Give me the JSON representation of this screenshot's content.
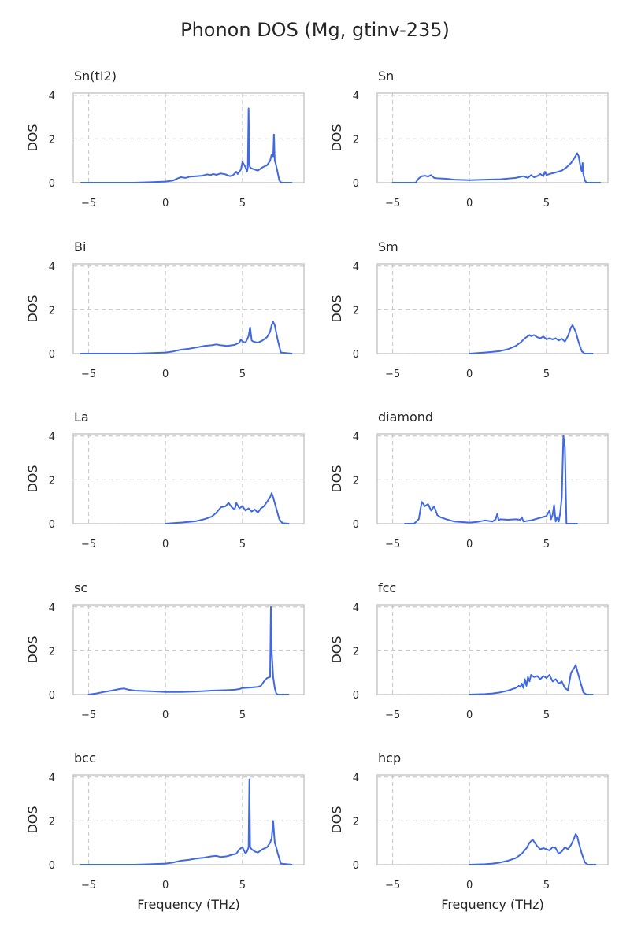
{
  "chart_data": {
    "type": "line",
    "title": "Phonon DOS (Mg, gtinv-235)",
    "xlabel": "Frequency (THz)",
    "ylabel": "DOS",
    "xlim": [
      -6,
      9
    ],
    "ylim": [
      0,
      4.1
    ],
    "xticks": [
      -5,
      0,
      5
    ],
    "xtick_labels": [
      "−5",
      "0",
      "5"
    ],
    "yticks": [
      0,
      2,
      4
    ],
    "ytick_labels": [
      "0",
      "2",
      "4"
    ],
    "grid": true,
    "line_color": "#4169e1",
    "panels": [
      {
        "name": "Sn(tI2)",
        "x": [
          -5.5,
          -2,
          -1,
          0,
          0.5,
          0.8,
          1,
          1.3,
          1.6,
          2,
          2.4,
          2.7,
          2.9,
          3.1,
          3.3,
          3.6,
          3.9,
          4.2,
          4.4,
          4.6,
          4.7,
          4.9,
          5.0,
          5.2,
          5.3,
          5.35,
          5.4,
          5.45,
          5.5,
          5.6,
          5.8,
          6.0,
          6.3,
          6.6,
          6.8,
          6.9,
          7.0,
          7.05,
          7.1,
          7.15,
          7.25,
          7.4,
          7.5,
          7.6,
          8.2
        ],
        "y": [
          0,
          0,
          0.02,
          0.05,
          0.1,
          0.2,
          0.25,
          0.22,
          0.28,
          0.3,
          0.32,
          0.38,
          0.35,
          0.4,
          0.36,
          0.42,
          0.38,
          0.3,
          0.35,
          0.5,
          0.4,
          0.6,
          0.95,
          0.7,
          0.5,
          0.7,
          3.4,
          0.8,
          0.7,
          0.65,
          0.6,
          0.55,
          0.7,
          0.8,
          1.0,
          1.3,
          1.2,
          2.2,
          1.0,
          0.9,
          0.6,
          0.1,
          0.02,
          0,
          0
        ]
      },
      {
        "name": "Sn",
        "x": [
          -5,
          -3.5,
          -3.3,
          -3.1,
          -2.9,
          -2.7,
          -2.5,
          -2.3,
          -2.1,
          -1.5,
          -1,
          0,
          1,
          2,
          3,
          3.5,
          3.8,
          4.0,
          4.2,
          4.4,
          4.6,
          4.8,
          4.9,
          5.0,
          5.2,
          5.5,
          6.0,
          6.3,
          6.6,
          6.8,
          7.0,
          7.1,
          7.2,
          7.3,
          7.35,
          7.4,
          7.5,
          7.6,
          8.5
        ],
        "y": [
          0,
          0,
          0.2,
          0.3,
          0.32,
          0.28,
          0.35,
          0.22,
          0.2,
          0.18,
          0.14,
          0.12,
          0.14,
          0.16,
          0.22,
          0.3,
          0.22,
          0.35,
          0.25,
          0.3,
          0.4,
          0.3,
          0.5,
          0.35,
          0.4,
          0.45,
          0.55,
          0.7,
          0.9,
          1.1,
          1.35,
          1.2,
          0.8,
          0.5,
          0.9,
          0.4,
          0.1,
          0,
          0
        ]
      },
      {
        "name": "Bi",
        "x": [
          -5.5,
          -2,
          -1,
          0,
          0.5,
          1,
          1.5,
          2,
          2.5,
          3,
          3.3,
          3.6,
          4,
          4.5,
          4.8,
          4.9,
          5.0,
          5.2,
          5.4,
          5.5,
          5.6,
          5.7,
          6.0,
          6.3,
          6.6,
          6.8,
          6.9,
          7.0,
          7.1,
          7.3,
          7.5,
          8.2
        ],
        "y": [
          0,
          0,
          0.02,
          0.05,
          0.1,
          0.18,
          0.22,
          0.28,
          0.35,
          0.38,
          0.42,
          0.38,
          0.35,
          0.4,
          0.5,
          0.65,
          0.55,
          0.5,
          0.8,
          1.2,
          0.6,
          0.55,
          0.5,
          0.6,
          0.75,
          1.0,
          1.3,
          1.45,
          1.3,
          0.6,
          0.05,
          0
        ]
      },
      {
        "name": "Sm",
        "x": [
          0,
          1,
          1.5,
          2,
          2.5,
          3,
          3.3,
          3.6,
          3.9,
          4.0,
          4.2,
          4.4,
          4.6,
          4.8,
          5.0,
          5.2,
          5.4,
          5.6,
          5.8,
          6.0,
          6.2,
          6.4,
          6.5,
          6.6,
          6.7,
          6.9,
          7.1,
          7.3,
          7.5,
          8.0
        ],
        "y": [
          0,
          0.05,
          0.08,
          0.12,
          0.2,
          0.35,
          0.5,
          0.7,
          0.85,
          0.8,
          0.85,
          0.75,
          0.7,
          0.78,
          0.65,
          0.7,
          0.65,
          0.7,
          0.6,
          0.68,
          0.55,
          0.8,
          1.0,
          1.2,
          1.3,
          1.0,
          0.5,
          0.1,
          0,
          0
        ]
      },
      {
        "name": "La",
        "x": [
          0,
          1,
          1.5,
          2,
          2.5,
          3,
          3.3,
          3.6,
          3.9,
          4.1,
          4.3,
          4.5,
          4.6,
          4.8,
          5.0,
          5.2,
          5.4,
          5.6,
          5.8,
          6.0,
          6.2,
          6.4,
          6.6,
          6.8,
          6.9,
          7.0,
          7.2,
          7.4,
          7.6,
          8.0
        ],
        "y": [
          0,
          0.05,
          0.08,
          0.12,
          0.2,
          0.32,
          0.5,
          0.75,
          0.8,
          0.95,
          0.75,
          0.65,
          0.95,
          0.7,
          0.8,
          0.6,
          0.7,
          0.55,
          0.65,
          0.5,
          0.7,
          0.8,
          1.0,
          1.2,
          1.4,
          1.2,
          0.7,
          0.2,
          0.02,
          0
        ]
      },
      {
        "name": "diamond",
        "x": [
          -4.2,
          -3.6,
          -3.3,
          -3.1,
          -2.9,
          -2.7,
          -2.5,
          -2.3,
          -2.1,
          -1.9,
          -1.5,
          -1,
          0,
          0.5,
          1,
          1.5,
          1.7,
          1.8,
          1.9,
          2,
          2.5,
          3,
          3.3,
          3.4,
          3.5,
          4,
          4.5,
          5.0,
          5.2,
          5.3,
          5.4,
          5.5,
          5.6,
          5.7,
          5.8,
          5.9,
          6.0,
          6.1,
          6.2,
          6.3,
          6.5,
          7.0
        ],
        "y": [
          0,
          0,
          0.2,
          1.0,
          0.8,
          0.9,
          0.6,
          0.8,
          0.4,
          0.3,
          0.2,
          0.1,
          0.05,
          0.08,
          0.15,
          0.1,
          0.2,
          0.45,
          0.15,
          0.2,
          0.18,
          0.2,
          0.18,
          0.3,
          0.1,
          0.15,
          0.25,
          0.35,
          0.6,
          0.2,
          0.4,
          0.85,
          0.1,
          0.3,
          0.1,
          0.5,
          1.2,
          4.0,
          3.5,
          0,
          0,
          0
        ]
      },
      {
        "name": "sc",
        "x": [
          -5,
          -4.5,
          -4,
          -3.5,
          -3,
          -2.7,
          -2.4,
          -2,
          -1,
          0,
          1,
          2,
          3,
          4,
          4.5,
          4.8,
          5.0,
          5.5,
          6.0,
          6.2,
          6.4,
          6.6,
          6.8,
          6.85,
          6.9,
          7.0,
          7.1,
          7.2,
          7.3,
          7.5,
          8.0
        ],
        "y": [
          0,
          0.05,
          0.12,
          0.18,
          0.25,
          0.28,
          0.22,
          0.18,
          0.15,
          0.12,
          0.12,
          0.14,
          0.18,
          0.2,
          0.22,
          0.25,
          0.3,
          0.32,
          0.35,
          0.4,
          0.6,
          0.75,
          0.8,
          4.0,
          2.0,
          0.8,
          0.3,
          0.05,
          0,
          0,
          0
        ]
      },
      {
        "name": "fcc",
        "x": [
          0,
          1,
          1.5,
          2,
          2.5,
          3,
          3.2,
          3.3,
          3.4,
          3.5,
          3.6,
          3.7,
          3.8,
          3.9,
          4.0,
          4.2,
          4.4,
          4.6,
          4.8,
          5.0,
          5.2,
          5.4,
          5.6,
          5.8,
          6.0,
          6.2,
          6.4,
          6.6,
          6.8,
          6.9,
          7.0,
          7.2,
          7.4,
          7.6,
          8.0
        ],
        "y": [
          0,
          0.02,
          0.05,
          0.1,
          0.18,
          0.3,
          0.4,
          0.35,
          0.5,
          0.3,
          0.7,
          0.4,
          0.8,
          0.6,
          0.9,
          0.8,
          0.85,
          0.7,
          0.85,
          0.75,
          0.9,
          0.6,
          0.7,
          0.5,
          0.6,
          0.3,
          0.2,
          1.0,
          1.2,
          1.35,
          1.1,
          0.6,
          0.1,
          0,
          0
        ]
      },
      {
        "name": "bcc",
        "x": [
          -5.5,
          -2,
          -1,
          0,
          0.5,
          1,
          1.5,
          2,
          2.5,
          3,
          3.3,
          3.6,
          4,
          4.3,
          4.6,
          4.8,
          5.0,
          5.2,
          5.3,
          5.4,
          5.45,
          5.5,
          5.6,
          5.8,
          6.0,
          6.3,
          6.6,
          6.8,
          6.9,
          7.0,
          7.1,
          7.2,
          7.3,
          7.5,
          8.2
        ],
        "y": [
          0,
          0,
          0.02,
          0.05,
          0.1,
          0.18,
          0.22,
          0.28,
          0.32,
          0.38,
          0.4,
          0.35,
          0.38,
          0.45,
          0.5,
          0.7,
          0.8,
          0.5,
          0.6,
          0.8,
          3.9,
          0.8,
          0.7,
          0.6,
          0.55,
          0.7,
          0.8,
          1.0,
          1.2,
          2.0,
          1.0,
          0.8,
          0.5,
          0.05,
          0
        ]
      },
      {
        "name": "hcp",
        "x": [
          0,
          1,
          1.5,
          2,
          2.5,
          3,
          3.4,
          3.7,
          3.9,
          4.1,
          4.2,
          4.4,
          4.6,
          4.8,
          5.0,
          5.2,
          5.4,
          5.6,
          5.8,
          6.0,
          6.2,
          6.4,
          6.6,
          6.8,
          6.9,
          7.0,
          7.1,
          7.3,
          7.5,
          7.7,
          8.2
        ],
        "y": [
          0,
          0.02,
          0.05,
          0.1,
          0.18,
          0.3,
          0.5,
          0.75,
          1.0,
          1.15,
          1.05,
          0.85,
          0.7,
          0.75,
          0.7,
          0.65,
          0.8,
          0.75,
          0.5,
          0.6,
          0.8,
          0.7,
          0.9,
          1.2,
          1.4,
          1.3,
          1.0,
          0.5,
          0.1,
          0,
          0
        ]
      }
    ]
  }
}
